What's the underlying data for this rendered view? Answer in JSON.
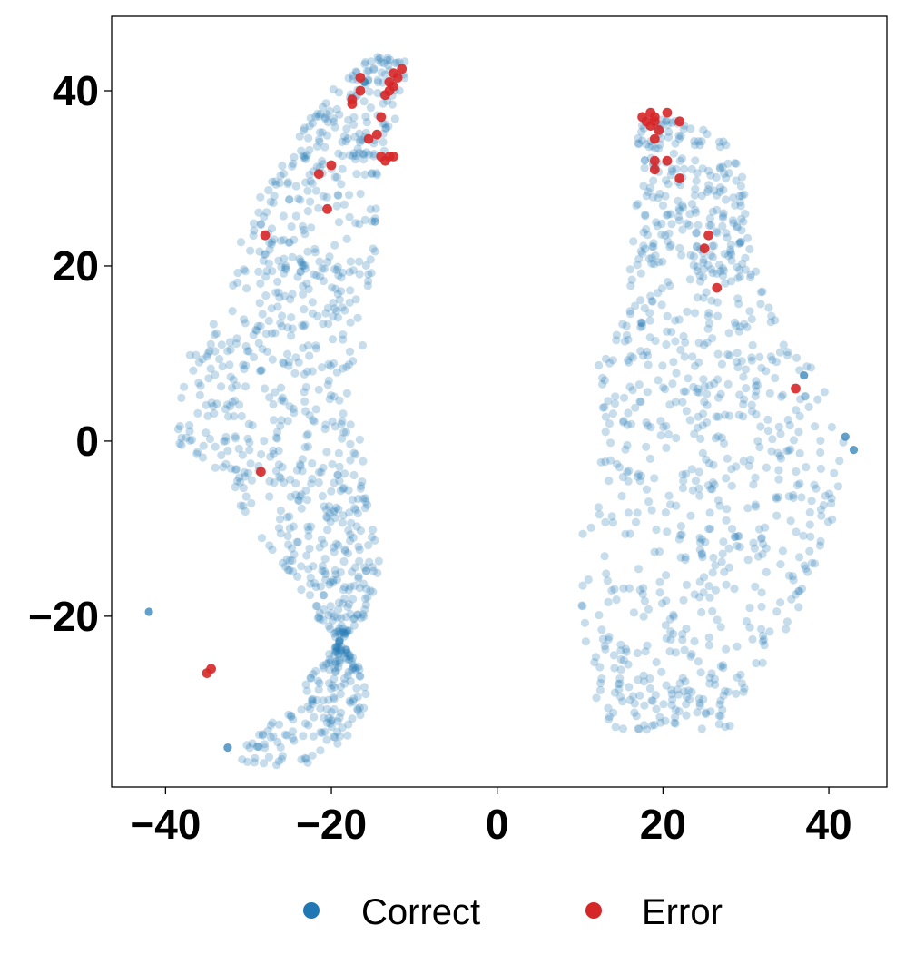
{
  "chart_data": {
    "type": "scatter",
    "title": "",
    "xlabel": "",
    "ylabel": "",
    "xlim": [
      -46.5,
      47.0
    ],
    "ylim": [
      -39.5,
      48.5
    ],
    "xticks": [
      -40,
      -20,
      0,
      20,
      40
    ],
    "yticks": [
      -20,
      0,
      20,
      40
    ],
    "xtick_labels": [
      "−40",
      "−20",
      "0",
      "20",
      "40"
    ],
    "ytick_labels": [
      "−20",
      "0",
      "20",
      "40"
    ],
    "grid": false,
    "legend": {
      "placement": "bottom-center-outside",
      "entries": [
        "Correct",
        "Error"
      ]
    },
    "series": [
      {
        "name": "Correct",
        "color": "#1f77b4",
        "opacity": 0.25,
        "clusters": [
          {
            "region": "left",
            "n_points": 1000,
            "profile": [
              [
                -37,
                -23,
                -31
              ],
              [
                -34,
                -18,
                -30
              ],
              [
                -30,
                -15,
                -25
              ],
              [
                -25,
                -17,
                -21
              ],
              [
                -20,
                -22,
                -16
              ],
              [
                -15,
                -25,
                -14
              ],
              [
                -10,
                -30,
                -15
              ],
              [
                -5,
                -32,
                -16
              ],
              [
                0,
                -39,
                -16
              ],
              [
                5,
                -39,
                -18
              ],
              [
                10,
                -37,
                -16
              ],
              [
                15,
                -33,
                -16
              ],
              [
                20,
                -31,
                -15
              ],
              [
                25,
                -31,
                -14
              ],
              [
                30,
                -27,
                -14
              ],
              [
                35,
                -24,
                -13
              ],
              [
                40,
                -20,
                -11
              ],
              [
                44,
                -15,
                -11
              ]
            ],
            "outliers": [
              [
                -42,
                -19.5
              ],
              [
                -32.5,
                -35
              ],
              [
                -16,
                41
              ]
            ]
          },
          {
            "region": "right",
            "n_points": 900,
            "profile": [
              [
                -33,
                14,
                28
              ],
              [
                -30,
                12,
                29
              ],
              [
                -25,
                11,
                33
              ],
              [
                -20,
                10,
                36
              ],
              [
                -15,
                10,
                38
              ],
              [
                -10,
                10,
                40
              ],
              [
                -5,
                12,
                42
              ],
              [
                0,
                13,
                42
              ],
              [
                5,
                12,
                40
              ],
              [
                10,
                12,
                37
              ],
              [
                15,
                16,
                33
              ],
              [
                20,
                16,
                31
              ],
              [
                25,
                16,
                30
              ],
              [
                30,
                17,
                30
              ],
              [
                34,
                17,
                28
              ],
              [
                37,
                17,
                22
              ]
            ],
            "outliers": [
              [
                42,
                0.5
              ],
              [
                43,
                -1
              ],
              [
                37,
                7.5
              ]
            ]
          }
        ]
      },
      {
        "name": "Error",
        "color": "#d62728",
        "opacity": 0.9,
        "x": [
          -11.5,
          -12,
          -12.5,
          -13,
          -12.5,
          -13.5,
          -13,
          -14,
          -16.5,
          -16.5,
          -17.5,
          -17.5,
          -12.5,
          -14,
          -15.5,
          -14.5,
          -13,
          -13.5,
          -20,
          -21.5,
          -20.5,
          -28,
          -28.5,
          -35,
          -34.5,
          17.5,
          18,
          18.5,
          19,
          18.5,
          19,
          19.5,
          20.5,
          22,
          19,
          19,
          20.5,
          19,
          22,
          25.5,
          25,
          26.5,
          36
        ],
        "y": [
          42.5,
          41.5,
          42,
          41,
          40.5,
          39.5,
          40,
          37,
          40,
          41.5,
          39,
          38.5,
          32.5,
          32.5,
          34.5,
          35,
          32.5,
          32,
          31.5,
          30.5,
          26.5,
          23.5,
          -3.5,
          -26.5,
          -26,
          37,
          36.5,
          36,
          36.5,
          37.5,
          37,
          35.5,
          37.5,
          36.5,
          34.5,
          32,
          32,
          31,
          30,
          23.5,
          22,
          17.5,
          6
        ]
      }
    ]
  }
}
